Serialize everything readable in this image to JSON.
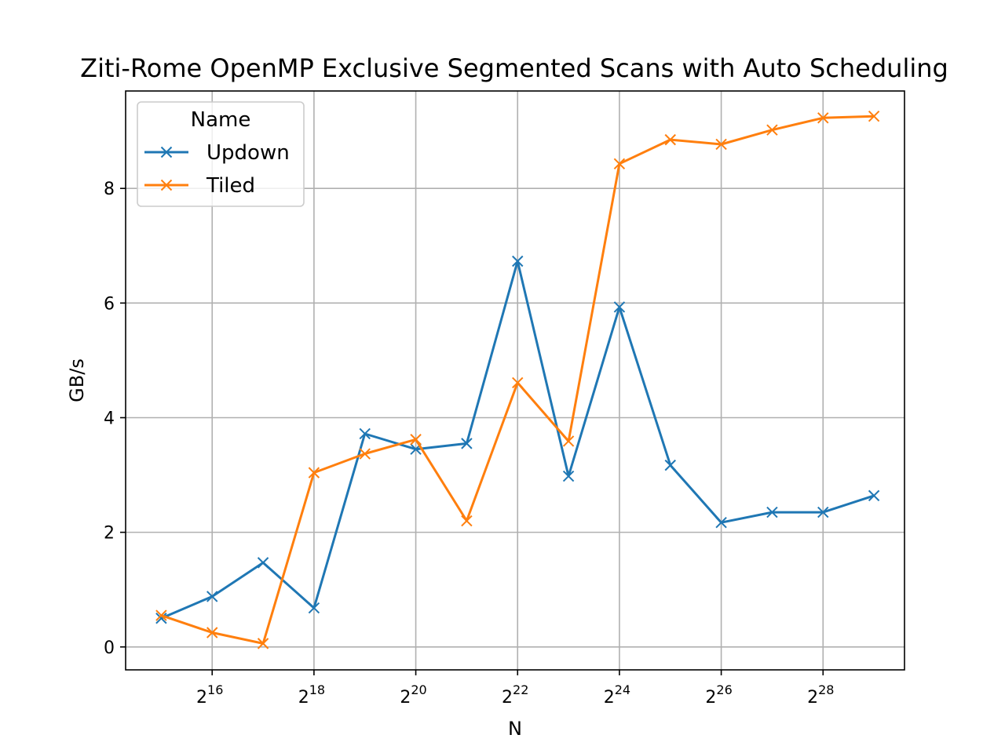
{
  "chart_data": {
    "type": "line",
    "title": "Ziti-Rome OpenMP Exclusive Segmented Scans with Auto Scheduling",
    "xlabel": "N",
    "ylabel": "GB/s",
    "x_scale": "log2",
    "x_exponents": [
      15,
      16,
      17,
      18,
      19,
      20,
      21,
      22,
      23,
      24,
      25,
      26,
      27,
      28,
      29
    ],
    "xlim_exponent": [
      14.3,
      29.6
    ],
    "ylim": [
      -0.4,
      9.7
    ],
    "x_tick_exponents": [
      16,
      18,
      20,
      22,
      24,
      26,
      28
    ],
    "y_ticks": [
      0,
      2,
      4,
      6,
      8
    ],
    "grid": true,
    "legend": {
      "title": "Name",
      "placement": "top-left"
    },
    "series": [
      {
        "name": "Updown",
        "color": "#1f77b4",
        "marker": "x",
        "values": [
          0.5,
          0.88,
          1.47,
          0.68,
          3.72,
          3.45,
          3.55,
          6.73,
          2.98,
          5.93,
          3.17,
          2.17,
          2.35,
          2.35,
          2.64
        ]
      },
      {
        "name": "Tiled",
        "color": "#ff7f0e",
        "marker": "x",
        "values": [
          0.55,
          0.25,
          0.06,
          3.04,
          3.37,
          3.62,
          2.2,
          4.61,
          3.59,
          8.43,
          8.85,
          8.77,
          9.02,
          9.23,
          9.26
        ]
      }
    ]
  }
}
